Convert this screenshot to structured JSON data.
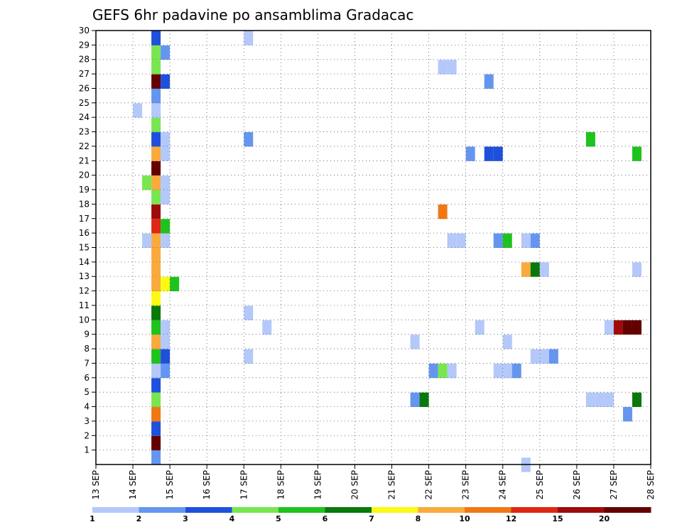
{
  "chart_data": {
    "type": "heatmap",
    "title": "GEFS 6hr padavine po ansamblima Gradacac",
    "x_start_day": "13 SEP",
    "x_tick_labels": [
      "13 SEP",
      "14 SEP",
      "15 SEP",
      "16 SEP",
      "17 SEP",
      "18 SEP",
      "19 SEP",
      "20 SEP",
      "21 SEP",
      "22 SEP",
      "23 SEP",
      "24 SEP",
      "25 SEP",
      "26 SEP",
      "27 SEP",
      "28 SEP"
    ],
    "xlim": [
      0,
      15
    ],
    "ylim": [
      0,
      30
    ],
    "y_tick_labels": [
      "1",
      "2",
      "3",
      "4",
      "5",
      "6",
      "7",
      "8",
      "9",
      "10",
      "11",
      "12",
      "13",
      "14",
      "15",
      "16",
      "17",
      "18",
      "19",
      "20",
      "21",
      "22",
      "23",
      "24",
      "25",
      "26",
      "27",
      "28",
      "29",
      "30"
    ],
    "grid": true,
    "levels": [
      "1",
      "2",
      "3",
      "4",
      "5",
      "6",
      "7",
      "8",
      "10",
      "12",
      "15",
      "20"
    ],
    "colors": [
      "#b4c8fa",
      "#6496f0",
      "#1e50dc",
      "#78e650",
      "#1ec31e",
      "#0a780a",
      "#fafa14",
      "#faaa3c",
      "#f07814",
      "#dc2814",
      "#a00a0a",
      "#640000"
    ],
    "cells": [
      {
        "x": 1.5,
        "y": 0,
        "v": 1
      },
      {
        "x": 1.5,
        "y": 1,
        "v": 11
      },
      {
        "x": 1.5,
        "y": 2,
        "v": 2
      },
      {
        "x": 1.5,
        "y": 3,
        "v": 8
      },
      {
        "x": 1.5,
        "y": 4,
        "v": 3
      },
      {
        "x": 1.5,
        "y": 5,
        "v": 2
      },
      {
        "x": 1.5,
        "y": 6,
        "v": 0
      },
      {
        "x": 1.5,
        "y": 7,
        "v": 4
      },
      {
        "x": 1.5,
        "y": 8,
        "v": 7
      },
      {
        "x": 1.5,
        "y": 9,
        "v": 4
      },
      {
        "x": 1.5,
        "y": 10,
        "v": 5
      },
      {
        "x": 1.5,
        "y": 11,
        "v": 6
      },
      {
        "x": 1.5,
        "y": 12,
        "v": 7
      },
      {
        "x": 1.5,
        "y": 13,
        "v": 7
      },
      {
        "x": 1.5,
        "y": 14,
        "v": 7
      },
      {
        "x": 1.5,
        "y": 15,
        "v": 7
      },
      {
        "x": 1.5,
        "y": 16,
        "v": 9
      },
      {
        "x": 1.5,
        "y": 17,
        "v": 10
      },
      {
        "x": 1.5,
        "y": 18,
        "v": 3
      },
      {
        "x": 1.5,
        "y": 19,
        "v": 7
      },
      {
        "x": 1.5,
        "y": 20,
        "v": 11
      },
      {
        "x": 1.5,
        "y": 21,
        "v": 7
      },
      {
        "x": 1.5,
        "y": 22,
        "v": 2
      },
      {
        "x": 1.5,
        "y": 23,
        "v": 3
      },
      {
        "x": 1.5,
        "y": 24,
        "v": 0
      },
      {
        "x": 1.5,
        "y": 25,
        "v": 1
      },
      {
        "x": 1.5,
        "y": 26,
        "v": 11
      },
      {
        "x": 1.5,
        "y": 27,
        "v": 3
      },
      {
        "x": 1.5,
        "y": 28,
        "v": 3
      },
      {
        "x": 1.5,
        "y": 29,
        "v": 2
      },
      {
        "x": 1.75,
        "y": 6,
        "v": 1
      },
      {
        "x": 1.75,
        "y": 7,
        "v": 2
      },
      {
        "x": 1.75,
        "y": 8,
        "v": 0
      },
      {
        "x": 1.75,
        "y": 9,
        "v": 0
      },
      {
        "x": 1.75,
        "y": 12,
        "v": 6
      },
      {
        "x": 1.75,
        "y": 15,
        "v": 0
      },
      {
        "x": 1.75,
        "y": 16,
        "v": 4
      },
      {
        "x": 1.75,
        "y": 18,
        "v": 0
      },
      {
        "x": 1.75,
        "y": 19,
        "v": 0
      },
      {
        "x": 1.75,
        "y": 21,
        "v": 0
      },
      {
        "x": 1.75,
        "y": 22,
        "v": 0
      },
      {
        "x": 1.75,
        "y": 26,
        "v": 2
      },
      {
        "x": 1.75,
        "y": 28,
        "v": 1
      },
      {
        "x": 2.0,
        "y": 12,
        "v": 4
      },
      {
        "x": 1.0,
        "y": 24,
        "v": 0
      },
      {
        "x": 1.25,
        "y": 15,
        "v": 0
      },
      {
        "x": 1.25,
        "y": 19,
        "v": 3
      },
      {
        "x": 4.0,
        "y": 29,
        "v": 0
      },
      {
        "x": 4.0,
        "y": 22,
        "v": 1
      },
      {
        "x": 4.0,
        "y": 10,
        "v": 0
      },
      {
        "x": 4.0,
        "y": 7,
        "v": 0
      },
      {
        "x": 4.5,
        "y": 9,
        "v": 0
      },
      {
        "x": 8.5,
        "y": 8,
        "v": 0
      },
      {
        "x": 8.5,
        "y": 4,
        "v": 1
      },
      {
        "x": 8.75,
        "y": 4,
        "v": 5
      },
      {
        "x": 9.0,
        "y": 6,
        "v": 1
      },
      {
        "x": 9.25,
        "y": 27,
        "v": 0
      },
      {
        "x": 9.5,
        "y": 27,
        "v": 0
      },
      {
        "x": 9.25,
        "y": 17,
        "v": 8
      },
      {
        "x": 9.25,
        "y": 6,
        "v": 3
      },
      {
        "x": 9.5,
        "y": 6,
        "v": 0
      },
      {
        "x": 9.5,
        "y": 15,
        "v": 0
      },
      {
        "x": 9.75,
        "y": 15,
        "v": 0
      },
      {
        "x": 10.0,
        "y": 21,
        "v": 1
      },
      {
        "x": 10.25,
        "y": 9,
        "v": 0
      },
      {
        "x": 10.5,
        "y": 26,
        "v": 1
      },
      {
        "x": 10.5,
        "y": 21,
        "v": 2
      },
      {
        "x": 10.75,
        "y": 21,
        "v": 2
      },
      {
        "x": 10.75,
        "y": 15,
        "v": 1
      },
      {
        "x": 11.0,
        "y": 15,
        "v": 4
      },
      {
        "x": 10.75,
        "y": 6,
        "v": 0
      },
      {
        "x": 11.0,
        "y": 6,
        "v": 0
      },
      {
        "x": 11.25,
        "y": 6,
        "v": 1
      },
      {
        "x": 11.0,
        "y": 8,
        "v": 0
      },
      {
        "x": 11.5,
        "y": 13,
        "v": 7
      },
      {
        "x": 11.75,
        "y": 13,
        "v": 5
      },
      {
        "x": 12.0,
        "y": 13,
        "v": 0
      },
      {
        "x": 11.5,
        "y": 15,
        "v": 0
      },
      {
        "x": 11.75,
        "y": 15,
        "v": 1
      },
      {
        "x": 11.75,
        "y": 7,
        "v": 0
      },
      {
        "x": 12.0,
        "y": 7,
        "v": 0
      },
      {
        "x": 12.25,
        "y": 7,
        "v": 1
      },
      {
        "x": 11.5,
        "y": -0.5,
        "v": 0
      },
      {
        "x": 13.25,
        "y": 22,
        "v": 4
      },
      {
        "x": 13.25,
        "y": 4,
        "v": 0
      },
      {
        "x": 13.5,
        "y": 4,
        "v": 0
      },
      {
        "x": 13.75,
        "y": 4,
        "v": 0
      },
      {
        "x": 13.75,
        "y": 9,
        "v": 0
      },
      {
        "x": 14.0,
        "y": 9,
        "v": 10
      },
      {
        "x": 14.25,
        "y": 9,
        "v": 11
      },
      {
        "x": 14.5,
        "y": 9,
        "v": 11
      },
      {
        "x": 14.25,
        "y": 3,
        "v": 1
      },
      {
        "x": 14.5,
        "y": 21,
        "v": 4
      },
      {
        "x": 14.5,
        "y": 13,
        "v": 0
      },
      {
        "x": 14.5,
        "y": 4,
        "v": 5
      }
    ]
  }
}
